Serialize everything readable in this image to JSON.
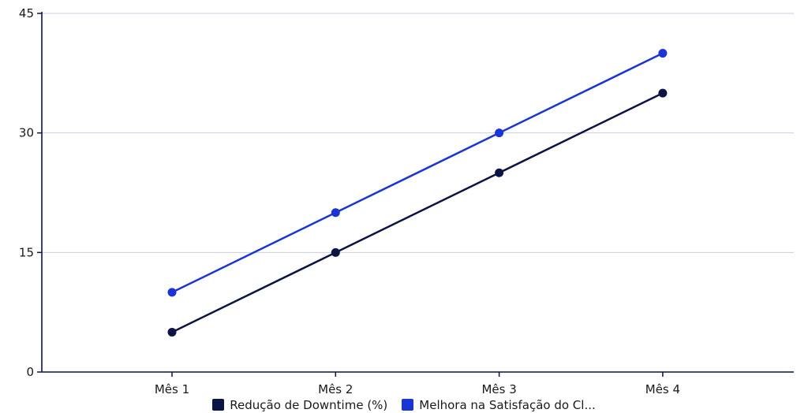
{
  "chart_data": {
    "type": "line",
    "categories": [
      "Mês 1",
      "Mês 2",
      "Mês 3",
      "Mês 4"
    ],
    "series": [
      {
        "name": "Redução de Downtime (%)",
        "values": [
          5,
          15,
          25,
          35
        ],
        "color": "#0b1445"
      },
      {
        "name": "Melhora na Satisfação do Cl...",
        "values": [
          10,
          20,
          30,
          40
        ],
        "color": "#1a35d4"
      }
    ],
    "yticks": [
      "0",
      "15",
      "30",
      "45"
    ],
    "ylim": [
      0,
      45
    ],
    "grid": true,
    "legend_position": "bottom",
    "title": "",
    "xlabel": "",
    "ylabel": ""
  }
}
